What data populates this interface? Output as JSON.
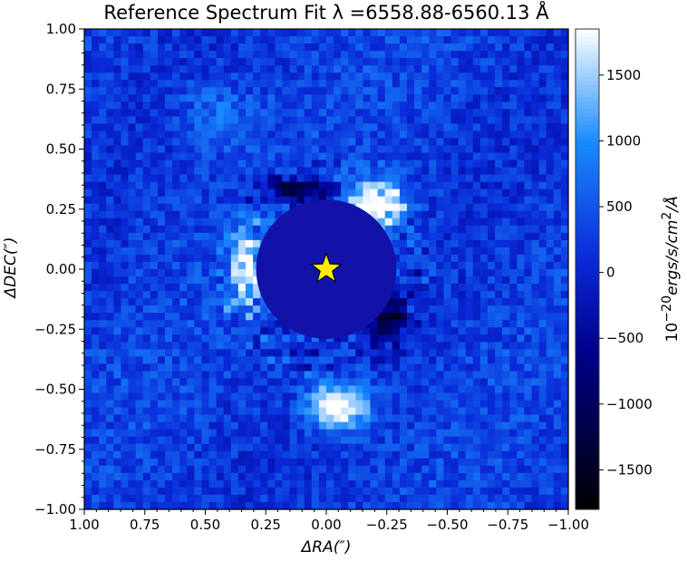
{
  "chart_data": {
    "type": "heatmap",
    "title": "Reference Spectrum Fit λ =6558.88-6560.13 Å",
    "xlabel": "ΔRA(″)",
    "ylabel": "ΔDEC(″)",
    "xlim": [
      1.0,
      -1.0
    ],
    "ylim": [
      -1.0,
      1.0
    ],
    "xticks": [
      "1.00",
      "0.75",
      "0.50",
      "0.25",
      "0.00",
      "−0.25",
      "−0.50",
      "−0.75",
      "−1.00"
    ],
    "yticks": [
      "1.00",
      "0.75",
      "0.50",
      "0.25",
      "0.00",
      "−0.25",
      "−0.50",
      "−0.75",
      "−1.00"
    ],
    "colorbar": {
      "label_prefix": "10",
      "label_exp": "−20",
      "label_unit": "ergs/s/cm",
      "label_exp2": "2",
      "label_suffix": "/Å",
      "clim": [
        -1800,
        1850
      ],
      "ticks": [
        "1500",
        "1000",
        "500",
        "0",
        "−500",
        "−1000",
        "−1500"
      ],
      "tick_values": [
        1500,
        1000,
        500,
        0,
        -500,
        -1000,
        -1500
      ],
      "colormap": [
        "#000000",
        "#00008c",
        "#0a2ad8",
        "#1a8cff",
        "#ffffff"
      ]
    },
    "mask": {
      "center": [
        0.0,
        0.0
      ],
      "radius": 0.29,
      "color": "#1212a8"
    },
    "marker": {
      "type": "star",
      "x": 0.0,
      "y": 0.0,
      "color": "#ffee00"
    },
    "features": [
      {
        "kind": "ring-arc-bright",
        "x": -0.2,
        "y": 0.25,
        "peak": 1800
      },
      {
        "kind": "ring-arc-bright",
        "x": 0.33,
        "y": 0.0,
        "peak": 1600
      },
      {
        "kind": "blob-bright",
        "x": -0.05,
        "y": -0.58,
        "peak": 1700
      },
      {
        "kind": "ring-dark",
        "x": 0.1,
        "y": 0.32,
        "peak": -1200
      },
      {
        "kind": "ring-dark",
        "x": -0.25,
        "y": -0.2,
        "peak": -1200
      }
    ]
  }
}
